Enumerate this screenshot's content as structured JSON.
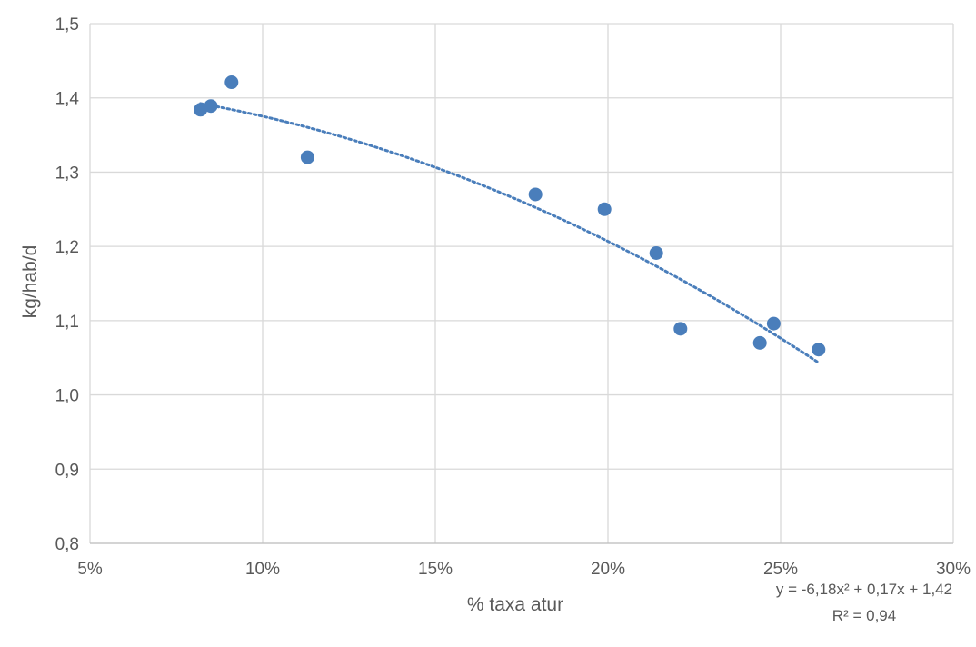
{
  "chart_data": {
    "type": "scatter",
    "title": "",
    "xlabel": "% taxa atur",
    "ylabel": "kg/hab/d",
    "xlim": [
      0.05,
      0.3
    ],
    "ylim": [
      0.8,
      1.5
    ],
    "x_ticks": [
      0.05,
      0.1,
      0.15,
      0.2,
      0.25,
      0.3
    ],
    "x_tick_labels": [
      "5%",
      "10%",
      "15%",
      "20%",
      "25%",
      "30%"
    ],
    "y_ticks": [
      0.8,
      0.9,
      1.0,
      1.1,
      1.2,
      1.3,
      1.4,
      1.5
    ],
    "y_tick_labels": [
      "0,8",
      "0,9",
      "1,0",
      "1,1",
      "1,2",
      "1,3",
      "1,4",
      "1,5"
    ],
    "grid": true,
    "series": [
      {
        "points": [
          {
            "x": 0.082,
            "y": 1.384
          },
          {
            "x": 0.085,
            "y": 1.389
          },
          {
            "x": 0.091,
            "y": 1.421
          },
          {
            "x": 0.113,
            "y": 1.32
          },
          {
            "x": 0.179,
            "y": 1.27
          },
          {
            "x": 0.199,
            "y": 1.25
          },
          {
            "x": 0.214,
            "y": 1.191
          },
          {
            "x": 0.221,
            "y": 1.089
          },
          {
            "x": 0.244,
            "y": 1.07
          },
          {
            "x": 0.248,
            "y": 1.096
          },
          {
            "x": 0.261,
            "y": 1.061
          }
        ]
      }
    ],
    "trendline": {
      "type": "polynomial",
      "coefficients": {
        "a": -6.18,
        "b": 0.17,
        "c": 1.42
      },
      "x_range": [
        0.082,
        0.261
      ],
      "style": "dotted",
      "equation": "y = -6,18x² + 0,17x + 1,42",
      "r2": "R² = 0,94"
    },
    "colors": {
      "marker": "#4a7ebb",
      "trendline": "#4a7ebb",
      "grid": "#d9d9d9",
      "text": "#595959"
    }
  }
}
